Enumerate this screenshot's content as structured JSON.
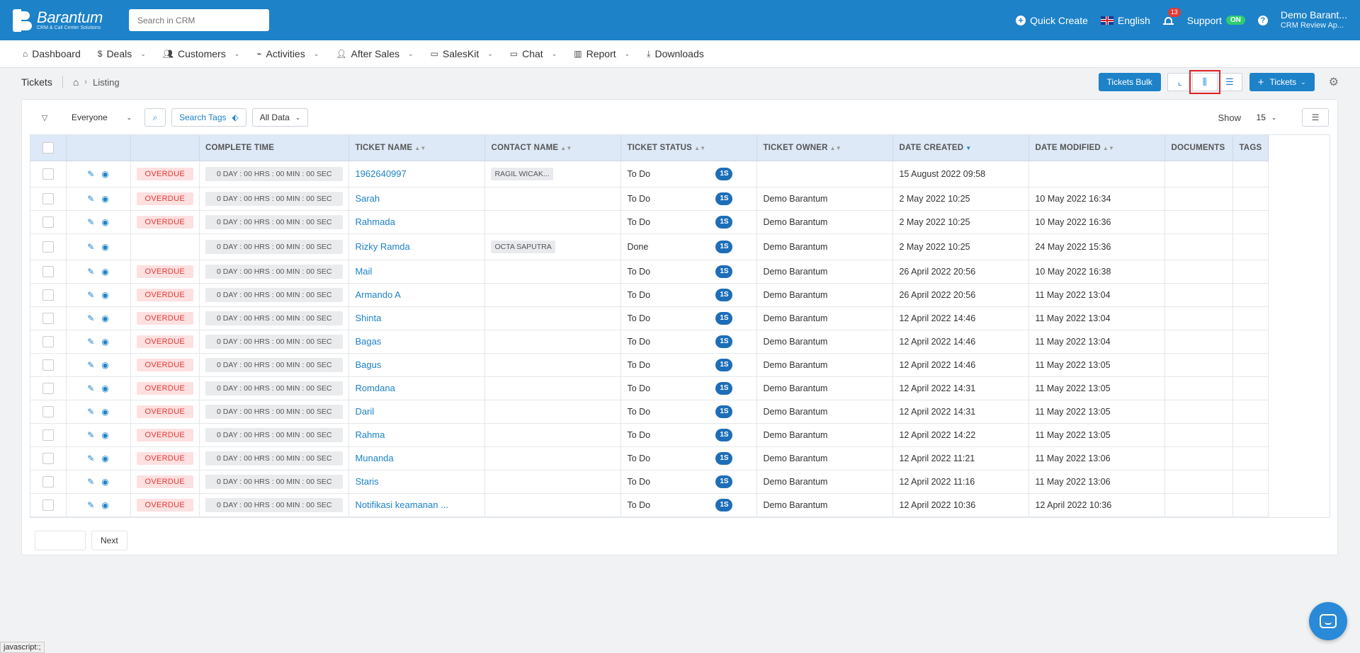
{
  "topbar": {
    "brand_name": "Barantum",
    "brand_tagline": "CRM & Call Center Solutions",
    "search_placeholder": "Search in CRM",
    "quick_create": "Quick Create",
    "language": "English",
    "notification_count": "13",
    "support_label": "Support",
    "support_status": "ON",
    "user_name": "Demo Barant...",
    "user_role": "CRM Review Ap..."
  },
  "nav": {
    "items": [
      {
        "label": "Dashboard",
        "icon": "home-icon"
      },
      {
        "label": "Deals",
        "icon": "dollar-icon"
      },
      {
        "label": "Customers",
        "icon": "users-icon"
      },
      {
        "label": "Activities",
        "icon": "activity-icon"
      },
      {
        "label": "After Sales",
        "icon": "user-icon"
      },
      {
        "label": "SalesKit",
        "icon": "folder-icon"
      },
      {
        "label": "Chat",
        "icon": "folder-icon"
      },
      {
        "label": "Report",
        "icon": "bar-chart-icon"
      },
      {
        "label": "Downloads",
        "icon": "download-icon"
      }
    ]
  },
  "breadcrumb": {
    "title": "Tickets",
    "current": "Listing"
  },
  "actions": {
    "bulk_label": "Tickets Bulk",
    "add_label": "Tickets"
  },
  "filters": {
    "owner": "Everyone",
    "tags_label": "Search Tags",
    "data_filter": "All Data",
    "show_label": "Show",
    "show_value": "15"
  },
  "table": {
    "headers": {
      "complete_time": "COMPLETE TIME",
      "ticket_name": "TICKET NAME",
      "contact_name": "CONTACT NAME",
      "ticket_status": "TICKET STATUS",
      "ticket_owner": "TICKET OWNER",
      "date_created": "DATE CREATED",
      "date_modified": "DATE MODIFIED",
      "documents": "DOCUMENTS",
      "tags": "TAGS"
    },
    "rows": [
      {
        "overdue": "OVERDUE",
        "time": "0 DAY : 00 HRS : 00 MIN : 00 SEC",
        "name": "1962640997",
        "contact": "RAGIL WICAK...",
        "status": "To Do",
        "badge": "1S",
        "owner": "",
        "created": "15 August 2022 09:58",
        "modified": ""
      },
      {
        "overdue": "OVERDUE",
        "time": "0 DAY : 00 HRS : 00 MIN : 00 SEC",
        "name": "Sarah",
        "contact": "",
        "status": "To Do",
        "badge": "1S",
        "owner": "Demo Barantum",
        "created": "2 May 2022 10:25",
        "modified": "10 May 2022 16:34"
      },
      {
        "overdue": "OVERDUE",
        "time": "0 DAY : 00 HRS : 00 MIN : 00 SEC",
        "name": "Rahmada",
        "contact": "",
        "status": "To Do",
        "badge": "1S",
        "owner": "Demo Barantum",
        "created": "2 May 2022 10:25",
        "modified": "10 May 2022 16:36"
      },
      {
        "overdue": "",
        "time": "0 DAY : 00 HRS : 00 MIN : 00 SEC",
        "name": "Rizky Ramda",
        "contact": "OCTA SAPUTRA",
        "status": "Done",
        "badge": "1S",
        "owner": "Demo Barantum",
        "created": "2 May 2022 10:25",
        "modified": "24 May 2022 15:36"
      },
      {
        "overdue": "OVERDUE",
        "time": "0 DAY : 00 HRS : 00 MIN : 00 SEC",
        "name": "Mail",
        "contact": "",
        "status": "To Do",
        "badge": "1S",
        "owner": "Demo Barantum",
        "created": "26 April 2022 20:56",
        "modified": "10 May 2022 16:38"
      },
      {
        "overdue": "OVERDUE",
        "time": "0 DAY : 00 HRS : 00 MIN : 00 SEC",
        "name": "Armando A",
        "contact": "",
        "status": "To Do",
        "badge": "1S",
        "owner": "Demo Barantum",
        "created": "26 April 2022 20:56",
        "modified": "11 May 2022 13:04"
      },
      {
        "overdue": "OVERDUE",
        "time": "0 DAY : 00 HRS : 00 MIN : 00 SEC",
        "name": "Shinta",
        "contact": "",
        "status": "To Do",
        "badge": "1S",
        "owner": "Demo Barantum",
        "created": "12 April 2022 14:46",
        "modified": "11 May 2022 13:04"
      },
      {
        "overdue": "OVERDUE",
        "time": "0 DAY : 00 HRS : 00 MIN : 00 SEC",
        "name": "Bagas",
        "contact": "",
        "status": "To Do",
        "badge": "1S",
        "owner": "Demo Barantum",
        "created": "12 April 2022 14:46",
        "modified": "11 May 2022 13:04"
      },
      {
        "overdue": "OVERDUE",
        "time": "0 DAY : 00 HRS : 00 MIN : 00 SEC",
        "name": "Bagus",
        "contact": "",
        "status": "To Do",
        "badge": "1S",
        "owner": "Demo Barantum",
        "created": "12 April 2022 14:46",
        "modified": "11 May 2022 13:05"
      },
      {
        "overdue": "OVERDUE",
        "time": "0 DAY : 00 HRS : 00 MIN : 00 SEC",
        "name": "Romdana",
        "contact": "",
        "status": "To Do",
        "badge": "1S",
        "owner": "Demo Barantum",
        "created": "12 April 2022 14:31",
        "modified": "11 May 2022 13:05"
      },
      {
        "overdue": "OVERDUE",
        "time": "0 DAY : 00 HRS : 00 MIN : 00 SEC",
        "name": "Daril",
        "contact": "",
        "status": "To Do",
        "badge": "1S",
        "owner": "Demo Barantum",
        "created": "12 April 2022 14:31",
        "modified": "11 May 2022 13:05"
      },
      {
        "overdue": "OVERDUE",
        "time": "0 DAY : 00 HRS : 00 MIN : 00 SEC",
        "name": "Rahma",
        "contact": "",
        "status": "To Do",
        "badge": "1S",
        "owner": "Demo Barantum",
        "created": "12 April 2022 14:22",
        "modified": "11 May 2022 13:05"
      },
      {
        "overdue": "OVERDUE",
        "time": "0 DAY : 00 HRS : 00 MIN : 00 SEC",
        "name": "Munanda",
        "contact": "",
        "status": "To Do",
        "badge": "1S",
        "owner": "Demo Barantum",
        "created": "12 April 2022 11:21",
        "modified": "11 May 2022 13:06"
      },
      {
        "overdue": "OVERDUE",
        "time": "0 DAY : 00 HRS : 00 MIN : 00 SEC",
        "name": "Staris",
        "contact": "",
        "status": "To Do",
        "badge": "1S",
        "owner": "Demo Barantum",
        "created": "12 April 2022 11:16",
        "modified": "11 May 2022 13:06"
      },
      {
        "overdue": "OVERDUE",
        "time": "0 DAY : 00 HRS : 00 MIN : 00 SEC",
        "name": "Notifikasi keamanan ...",
        "contact": "",
        "status": "To Do",
        "badge": "1S",
        "owner": "Demo Barantum",
        "created": "12 April 2022 10:36",
        "modified": "12 April 2022 10:36"
      }
    ]
  },
  "pagination": {
    "next_label": "Next"
  },
  "statusbar": {
    "url": "javascript:;"
  },
  "colors": {
    "brand": "#1d82c8",
    "overdue_bg": "#fde0e0",
    "overdue_text": "#e53935",
    "header_bg": "#dde9f7"
  }
}
